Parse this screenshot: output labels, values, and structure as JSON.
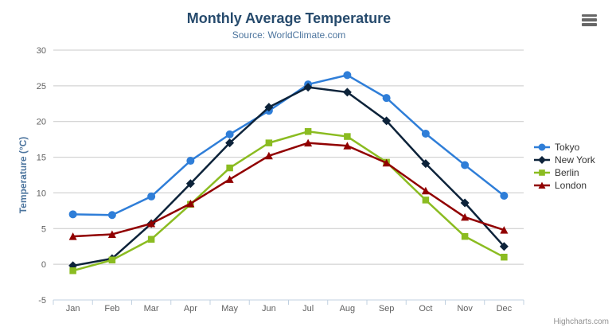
{
  "chart": {
    "credits_text": "Highcharts.com",
    "menu_icon": "hamburger-menu-icon"
  },
  "chart_data": {
    "type": "line",
    "title": "Monthly Average Temperature",
    "subtitle": "Source: WorldClimate.com",
    "xlabel": "",
    "ylabel": "Temperature (°C)",
    "ylim": [
      -5,
      30
    ],
    "ytick_interval": 5,
    "grid": true,
    "legend_position": "right",
    "categories": [
      "Jan",
      "Feb",
      "Mar",
      "Apr",
      "May",
      "Jun",
      "Jul",
      "Aug",
      "Sep",
      "Oct",
      "Nov",
      "Dec"
    ],
    "series": [
      {
        "name": "Tokyo",
        "color": "#2f7ed8",
        "marker": "circle",
        "values": [
          7.0,
          6.9,
          9.5,
          14.5,
          18.2,
          21.5,
          25.2,
          26.5,
          23.3,
          18.3,
          13.9,
          9.6
        ]
      },
      {
        "name": "New York",
        "color": "#0d233a",
        "marker": "diamond",
        "values": [
          -0.2,
          0.8,
          5.7,
          11.3,
          17.0,
          22.0,
          24.8,
          24.1,
          20.1,
          14.1,
          8.6,
          2.5
        ]
      },
      {
        "name": "Berlin",
        "color": "#8bbc21",
        "marker": "square",
        "values": [
          -0.9,
          0.6,
          3.5,
          8.4,
          13.5,
          17.0,
          18.6,
          17.9,
          14.3,
          9.0,
          3.9,
          1.0
        ]
      },
      {
        "name": "London",
        "color": "#910000",
        "marker": "triangle",
        "values": [
          3.9,
          4.2,
          5.7,
          8.5,
          11.9,
          15.2,
          17.0,
          16.6,
          14.2,
          10.3,
          6.6,
          4.8
        ]
      }
    ],
    "axis_colors": {
      "grid_line": "#c9c9c9",
      "axis_line": "#c0d0e0",
      "tick_label": "#606060"
    }
  }
}
